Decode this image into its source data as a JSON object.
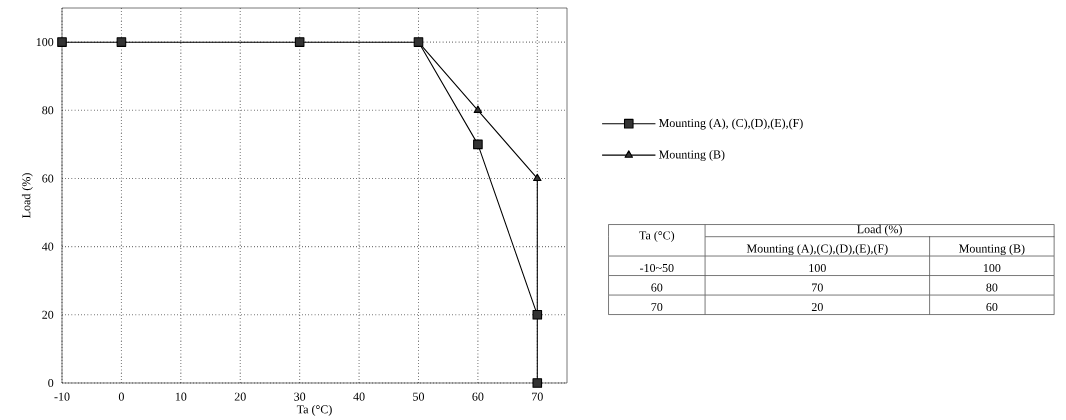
{
  "chart_data": {
    "type": "line",
    "xlabel": "Ta (°C)",
    "ylabel": "Load (%)",
    "xlim": [
      -10,
      75
    ],
    "ylim": [
      0,
      110
    ],
    "xticks": [
      -10,
      0,
      10,
      20,
      30,
      40,
      50,
      60,
      70
    ],
    "yticks": [
      0,
      20,
      40,
      60,
      80,
      100
    ],
    "grid": true,
    "legend": "right",
    "line_style": "solid",
    "series": [
      {
        "name": "Mounting (A), (C),(D),(E),(F)",
        "color": "#000000",
        "marker": "square",
        "x": [
          -10,
          0,
          30,
          50,
          60,
          70,
          70
        ],
        "values": [
          100,
          100,
          100,
          100,
          70,
          20,
          0
        ]
      },
      {
        "name": "Mounting (B)",
        "color": "#000000",
        "marker": "triangle",
        "x": [
          50,
          60,
          70,
          70
        ],
        "values": [
          100,
          80,
          60,
          20
        ]
      }
    ],
    "annotations": [
      "Ta (°C)",
      "Load (%)",
      "Mounting (A),(C),(D),(E),(F)",
      "Mounting (B)",
      "-10~50",
      "100",
      "100",
      "60",
      "70",
      "80",
      "70",
      "20",
      "60"
    ]
  }
}
